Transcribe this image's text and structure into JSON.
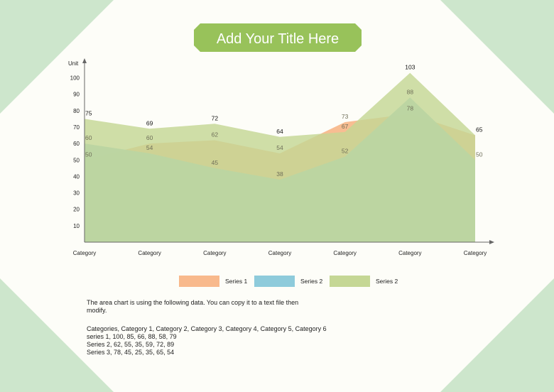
{
  "title": "Add Your Title Here",
  "colors": {
    "background": "#fdfdf8",
    "corner": "#cde6cc",
    "title_bg": "#98c25a",
    "axis": "#666666",
    "series_1": "#f8b98c",
    "series_2": "#8ecbdb",
    "series_3": "#c5d795"
  },
  "chart_data": {
    "type": "area",
    "title": "",
    "ylabel": "Unit",
    "xlabel": "",
    "categories": [
      "Category",
      "Category",
      "Category",
      "Category",
      "Category",
      "Category",
      "Category"
    ],
    "ylim": [
      0,
      110
    ],
    "yticks": [
      10,
      20,
      30,
      40,
      50,
      60,
      70,
      80,
      90,
      100
    ],
    "grid": false,
    "legend_position": "bottom",
    "series": [
      {
        "name": "Series 1",
        "values": [
          50,
          60,
          62,
          54,
          73,
          78,
          65
        ],
        "color": "#f8b98c"
      },
      {
        "name": "Series 2",
        "values": [
          60,
          54,
          45,
          38,
          52,
          88,
          50
        ],
        "color": "#8ecbdb"
      },
      {
        "name": "Series 2",
        "values": [
          75,
          69,
          72,
          64,
          67,
          103,
          65
        ],
        "color": "#c5d795"
      }
    ],
    "value_labels": [
      {
        "series": 2,
        "index": 0,
        "text": "75"
      },
      {
        "series": 1,
        "index": 0,
        "text": "60"
      },
      {
        "series": 0,
        "index": 0,
        "text": "50"
      },
      {
        "series": 2,
        "index": 1,
        "text": "69"
      },
      {
        "series": 0,
        "index": 1,
        "text": "60"
      },
      {
        "series": 1,
        "index": 1,
        "text": "54"
      },
      {
        "series": 2,
        "index": 2,
        "text": "72"
      },
      {
        "series": 0,
        "index": 2,
        "text": "62"
      },
      {
        "series": 1,
        "index": 2,
        "text": "45"
      },
      {
        "series": 2,
        "index": 3,
        "text": "64"
      },
      {
        "series": 0,
        "index": 3,
        "text": "54"
      },
      {
        "series": 1,
        "index": 3,
        "text": "38"
      },
      {
        "series": 0,
        "index": 4,
        "text": "73"
      },
      {
        "series": 2,
        "index": 4,
        "text": "67"
      },
      {
        "series": 1,
        "index": 4,
        "text": "52"
      },
      {
        "series": 2,
        "index": 5,
        "text": "103"
      },
      {
        "series": 1,
        "index": 5,
        "text": "88"
      },
      {
        "series": 0,
        "index": 5,
        "text": "78"
      },
      {
        "series": 2,
        "index": 6,
        "text": "65"
      },
      {
        "series": 1,
        "index": 6,
        "text": "50"
      }
    ]
  },
  "notes": {
    "line1": "The area chart is using the following data. You can copy it to a text file then",
    "line2": "modify.",
    "data_lines": [
      "Categories, Category 1, Category 2, Category 3, Category 4, Category 5, Category 6",
      "series 1, 100, 85, 66, 88, 58, 79",
      "Series 2, 62, 55, 35, 59, 72, 89",
      "Series 3, 78, 45, 25, 35, 65, 54"
    ]
  }
}
